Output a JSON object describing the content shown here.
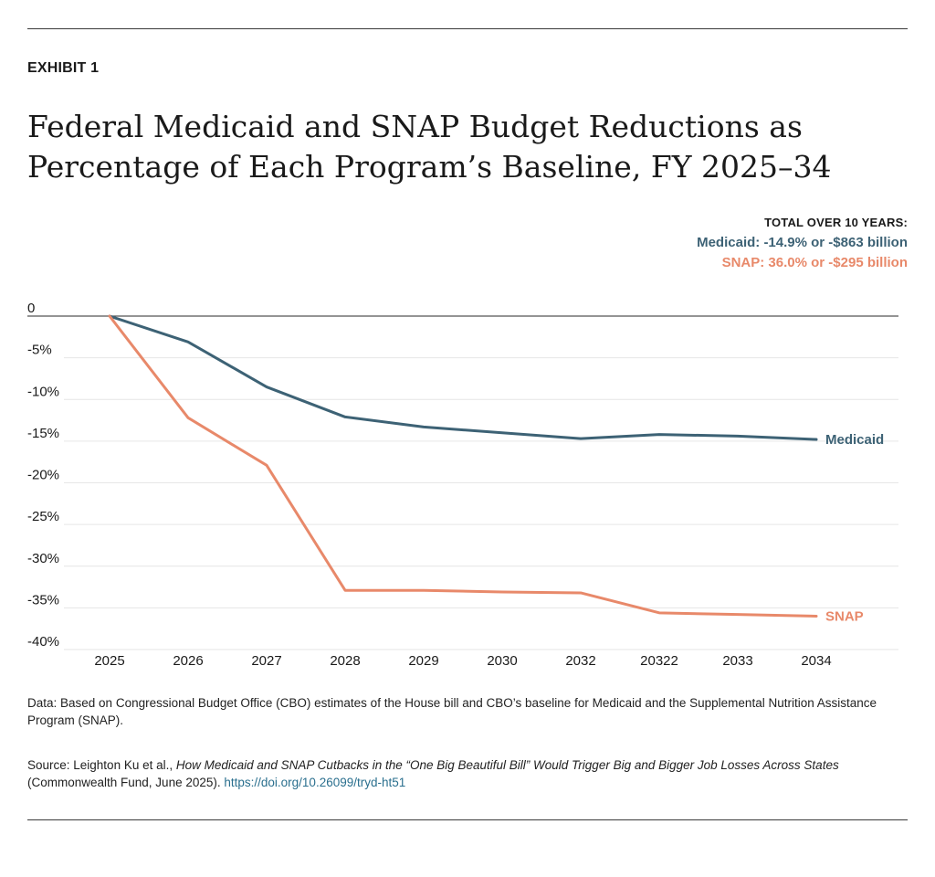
{
  "exhibit_label": "EXHIBIT 1",
  "title": "Federal Medicaid and SNAP Budget Reductions as Percentage of Each Program’s Baseline, FY 2025–34",
  "summary": {
    "heading": "TOTAL OVER 10 YEARS:",
    "medicaid": "Medicaid: -14.9% or -$863 billion",
    "snap": "SNAP: 36.0% or -$295 billion"
  },
  "colors": {
    "medicaid": "#3d6275",
    "snap": "#e8896a",
    "text": "#1a1a1a",
    "grid": "#e6e6e6",
    "zero": "#555555",
    "link": "#2a6f8e"
  },
  "chart_data": {
    "type": "line",
    "categories": [
      "2025",
      "2026",
      "2027",
      "2028",
      "2029",
      "2030",
      "2032",
      "20322",
      "2033",
      "2034"
    ],
    "series": [
      {
        "name": "Medicaid",
        "color": "#3d6275",
        "values": [
          0,
          -3.1,
          -8.5,
          -12.1,
          -13.3,
          -14.0,
          -14.7,
          -14.2,
          -14.4,
          -14.8
        ]
      },
      {
        "name": "SNAP",
        "color": "#e8896a",
        "values": [
          0,
          -12.2,
          -17.9,
          -32.9,
          -32.9,
          -33.1,
          -33.2,
          -35.6,
          -35.8,
          -36.0
        ]
      }
    ],
    "y_ticks": [
      {
        "value": 0,
        "label": "0"
      },
      {
        "value": -5,
        "label": "-5%"
      },
      {
        "value": -10,
        "label": "-10%"
      },
      {
        "value": -15,
        "label": "-15%"
      },
      {
        "value": -20,
        "label": "-20%"
      },
      {
        "value": -25,
        "label": "-25%"
      },
      {
        "value": -30,
        "label": "-30%"
      },
      {
        "value": -35,
        "label": "-35%"
      },
      {
        "value": -40,
        "label": "-40%"
      }
    ],
    "ylim": [
      -40,
      0
    ],
    "grid": true,
    "legend": "inline labels at line ends"
  },
  "data_note": "Data: Based on Congressional Budget Office (CBO) estimates of the House bill and CBO’s baseline for Medicaid and the Supplemental Nutrition Assistance Program (SNAP).",
  "source": {
    "prefix": "Source: Leighton Ku et al., ",
    "work": "How Medicaid and SNAP Cutbacks in the “One Big Beautiful Bill” Would Trigger Big and Bigger Job Losses Across States",
    "publisher": " (Commonwealth Fund, June 2025). ",
    "link": "https://doi.org/10.26099/tryd-ht51"
  }
}
